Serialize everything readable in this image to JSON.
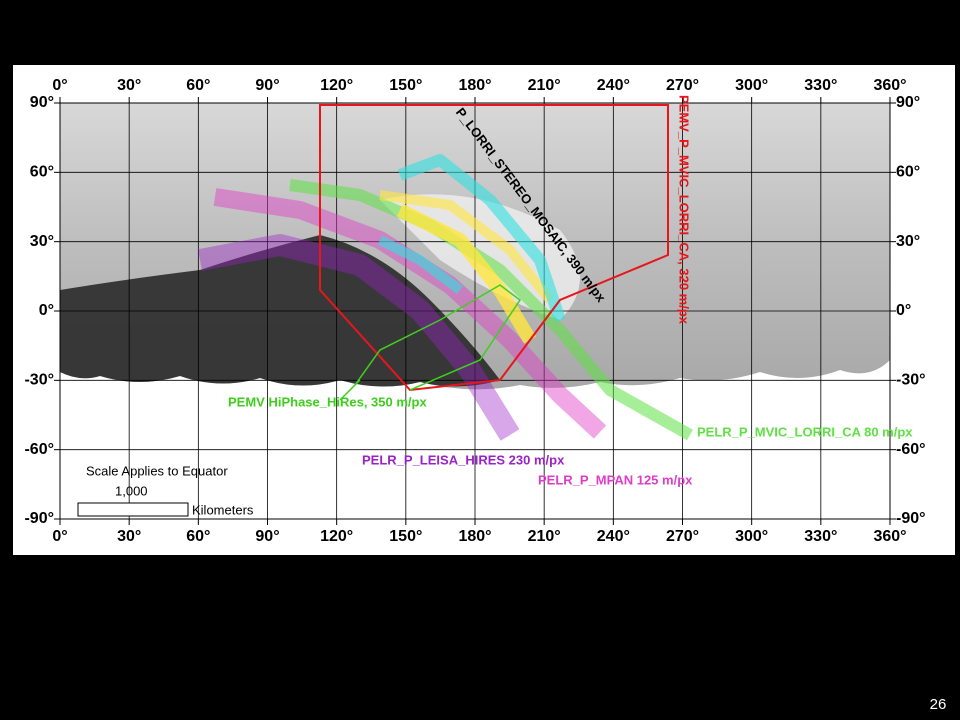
{
  "map": {
    "lon_ticks": [
      "0°",
      "30°",
      "60°",
      "90°",
      "120°",
      "150°",
      "180°",
      "210°",
      "240°",
      "270°",
      "300°",
      "330°",
      "360°"
    ],
    "lat_ticks": [
      "90°",
      "60°",
      "30°",
      "0°",
      "-30°",
      "-60°",
      "-90°"
    ],
    "footprints": [
      {
        "label": "PEMV_P_MVIC_LORRI_CA, 320 m/px",
        "color": "#e8161b"
      },
      {
        "label": "P_LORRI_STEREO_MOSAIC, 390 m/px",
        "color": "#000000"
      },
      {
        "label": "PEMV HiPhase_HiRes, 350 m/px",
        "color": "#3ecf1e"
      },
      {
        "label": "PELR_P_MVIC_LORRI_CA 80 m/px",
        "color": "#5fe043"
      },
      {
        "label": "PELR_P_LEISA_HIRES 230 m/px",
        "color": "#9a22c8"
      },
      {
        "label": "PELR_P_MPAN 125 m/px",
        "color": "#e03cc8"
      }
    ],
    "scale": {
      "title": "Scale Applies to Equator",
      "value": "1,000",
      "unit": "Kilometers"
    }
  },
  "page_number": "26"
}
